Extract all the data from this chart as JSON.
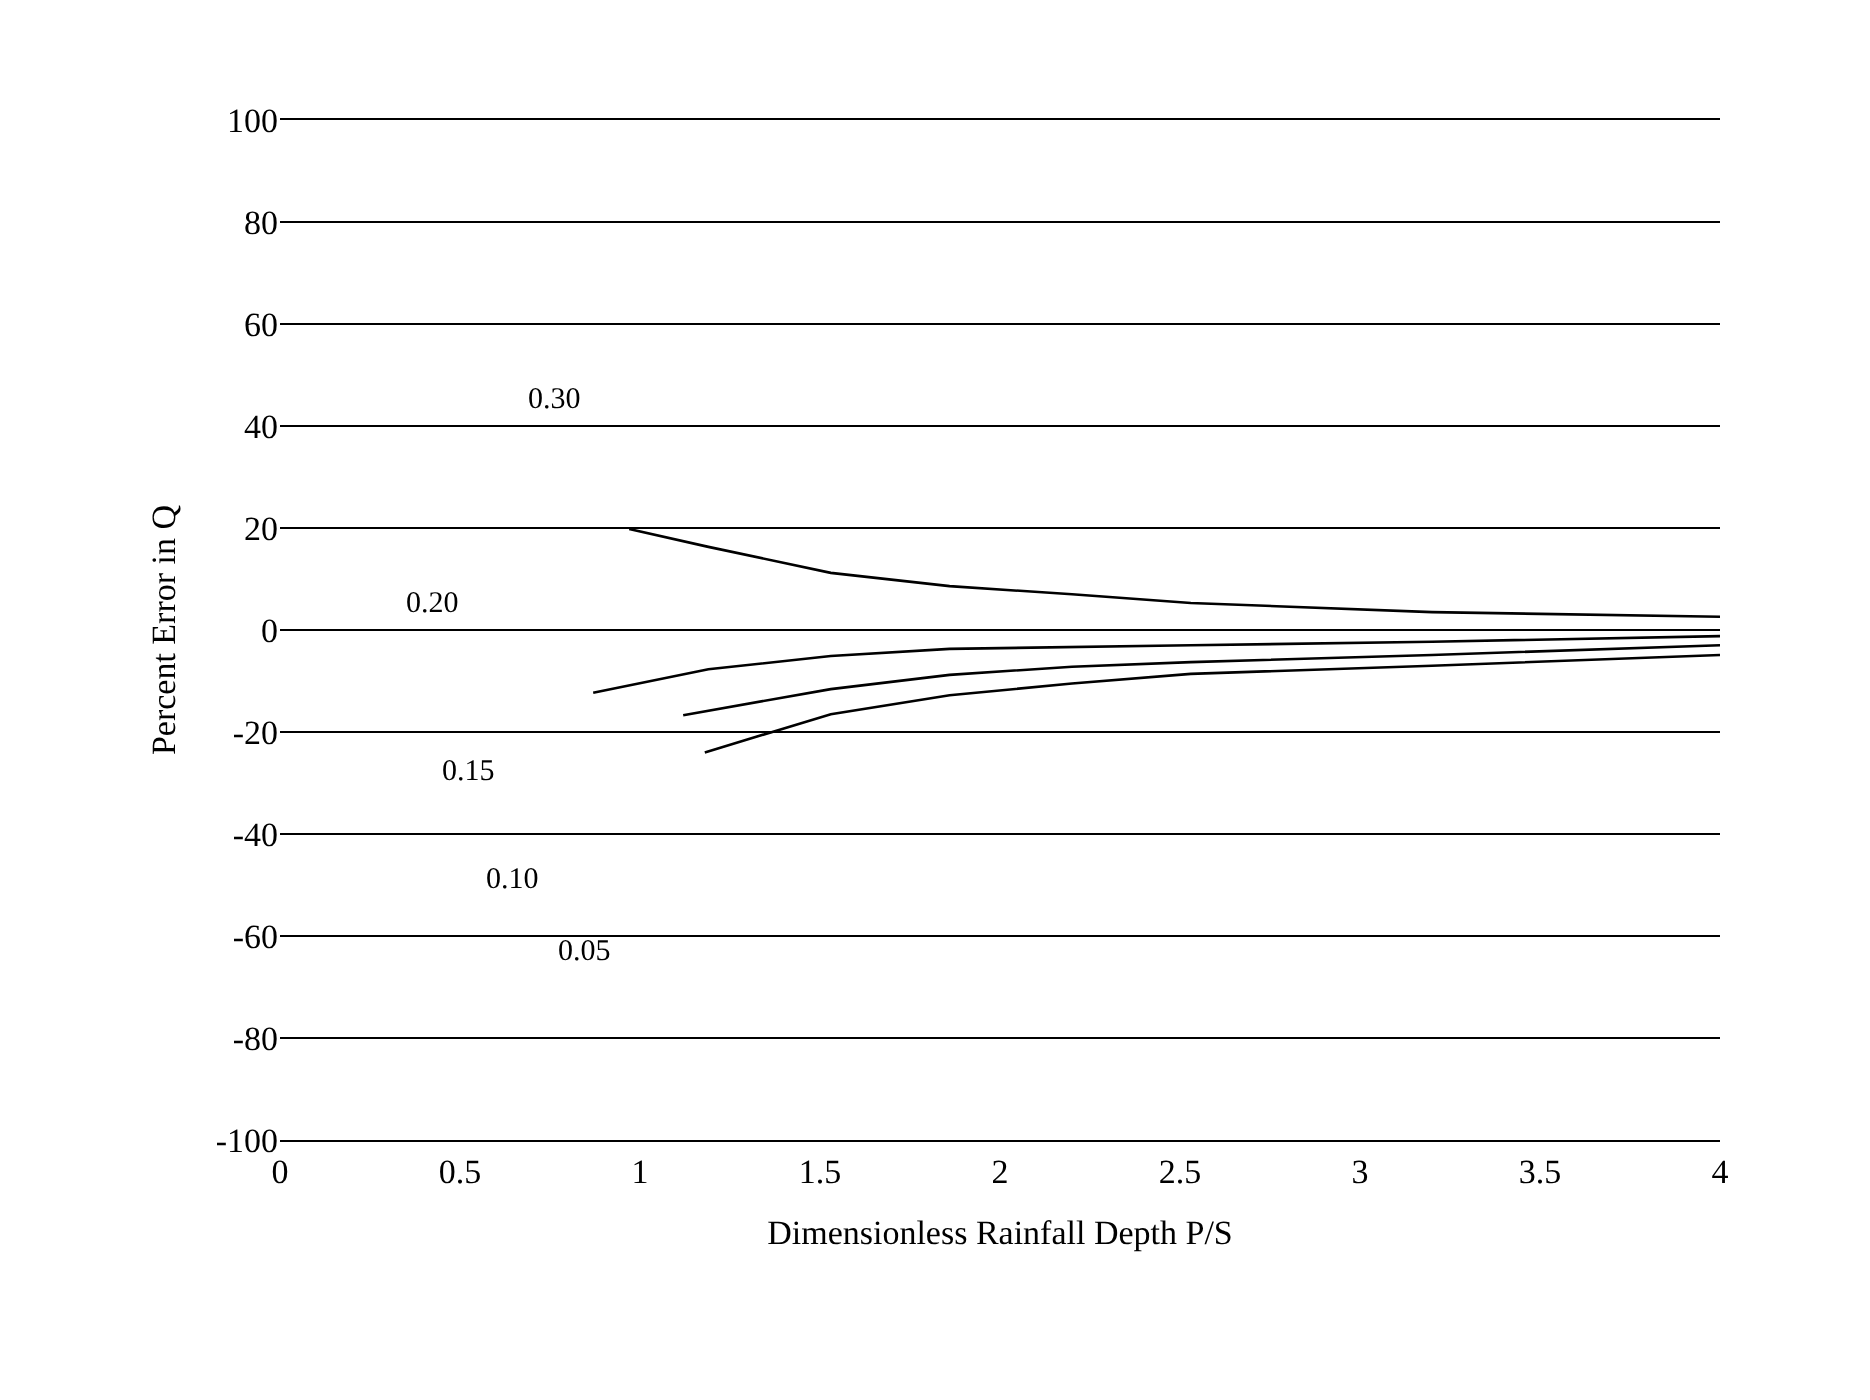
{
  "chart_data": {
    "type": "line",
    "xlabel": "Dimensionless Rainfall Depth P/S",
    "ylabel": "Percent Error in Q",
    "xlim": [
      0,
      4
    ],
    "xticks": [
      0,
      0.5,
      1,
      1.5,
      2,
      2.5,
      3,
      3.5,
      4
    ],
    "ylim": [
      -100,
      100
    ],
    "yticks": [
      -100,
      -80,
      -60,
      -40,
      -20,
      0,
      20,
      40,
      60,
      80,
      100
    ],
    "grid": "y",
    "marker": "none",
    "line_style": "solid",
    "series": [
      {
        "color": "#000000",
        "x": [
          0.97,
          1.19,
          1.53,
          1.86,
          2.2,
          2.53,
          3.2,
          4
        ],
        "values": [
          19.8,
          16.3,
          11.2,
          8.6,
          7,
          5.3,
          3.5,
          2.6
        ]
      },
      {
        "color": "#000000",
        "x": [
          0.87,
          1.19,
          1.53,
          1.86,
          2.53,
          3.2,
          4
        ],
        "values": [
          -12.3,
          -7.7,
          -5.1,
          -3.7,
          -3,
          -2.3,
          -1.2
        ]
      },
      {
        "color": "#000000",
        "x": [
          1.12,
          1.53,
          1.86,
          2.2,
          2.53,
          3.2,
          4
        ],
        "values": [
          -16.7,
          -11.6,
          -8.8,
          -7.2,
          -6.3,
          -4.9,
          -3
        ]
      },
      {
        "color": "#000000",
        "x": [
          1.18,
          1.53,
          1.86,
          2.2,
          2.53,
          3.2,
          4
        ],
        "values": [
          -24,
          -16.5,
          -12.8,
          -10.5,
          -8.6,
          -7,
          -4.9
        ]
      }
    ],
    "annotations": [
      "0.30",
      "0.20",
      "0.15",
      "0.10",
      "0.05"
    ]
  }
}
